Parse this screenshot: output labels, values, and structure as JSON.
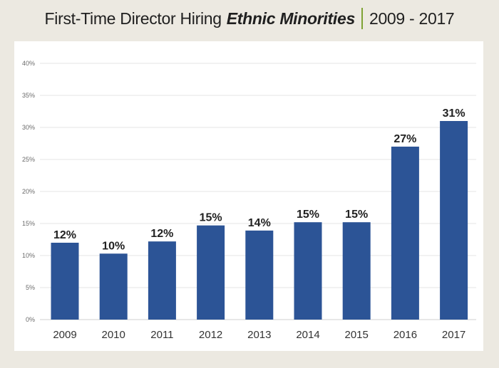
{
  "header": {
    "title_main": "First-Time Director Hiring",
    "title_emphasis": "Ethnic Minorities",
    "title_years": "2009 - 2017"
  },
  "colors": {
    "bar": "#2c5496",
    "accent": "#7fa335",
    "grid": "#e4e4e4",
    "background": "#ece9e1"
  },
  "chart_data": {
    "type": "bar",
    "title": "First-Time Director Hiring Ethnic Minorities | 2009 - 2017",
    "categories": [
      "2009",
      "2010",
      "2011",
      "2012",
      "2013",
      "2014",
      "2015",
      "2016",
      "2017"
    ],
    "values": [
      12,
      10.3,
      12.2,
      14.7,
      13.9,
      15.2,
      15.2,
      27,
      31
    ],
    "data_labels": [
      "12%",
      "10%",
      "12%",
      "15%",
      "14%",
      "15%",
      "15%",
      "27%",
      "31%"
    ],
    "y_ticks": [
      "0%",
      "5%",
      "10%",
      "15%",
      "20%",
      "25%",
      "30%",
      "35%",
      "40%"
    ],
    "ylim": [
      0,
      40
    ],
    "xlabel": "",
    "ylabel": "",
    "grid": true,
    "legend": "none"
  }
}
